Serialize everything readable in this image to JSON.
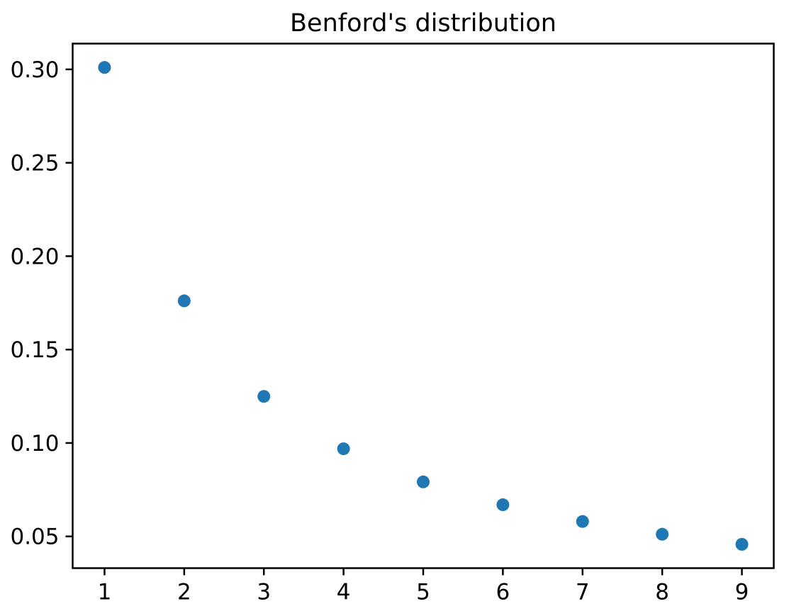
{
  "figure": {
    "background": "#ffffff"
  },
  "chart_data": {
    "type": "scatter",
    "title": "Benford's distribution",
    "x": [
      1,
      2,
      3,
      4,
      5,
      6,
      7,
      8,
      9
    ],
    "y": [
      0.30103,
      0.17609,
      0.12494,
      0.09691,
      0.07918,
      0.06695,
      0.05799,
      0.05115,
      0.04576
    ],
    "xlabel": "",
    "ylabel": "",
    "xlim": [
      0.6,
      9.4
    ],
    "ylim": [
      0.033,
      0.3138
    ],
    "xticks": [
      1,
      2,
      3,
      4,
      5,
      6,
      7,
      8,
      9
    ],
    "xtick_labels": [
      "1",
      "2",
      "3",
      "4",
      "5",
      "6",
      "7",
      "8",
      "9"
    ],
    "yticks": [
      0.05,
      0.1,
      0.15,
      0.2,
      0.25,
      0.3
    ],
    "ytick_labels": [
      "0.05",
      "0.10",
      "0.15",
      "0.20",
      "0.25",
      "0.30"
    ],
    "grid": false,
    "legend": null,
    "marker_color": "#1f77b4",
    "marker_radius_px": 9,
    "axis_color": "#000000",
    "text_color": "#000000"
  }
}
